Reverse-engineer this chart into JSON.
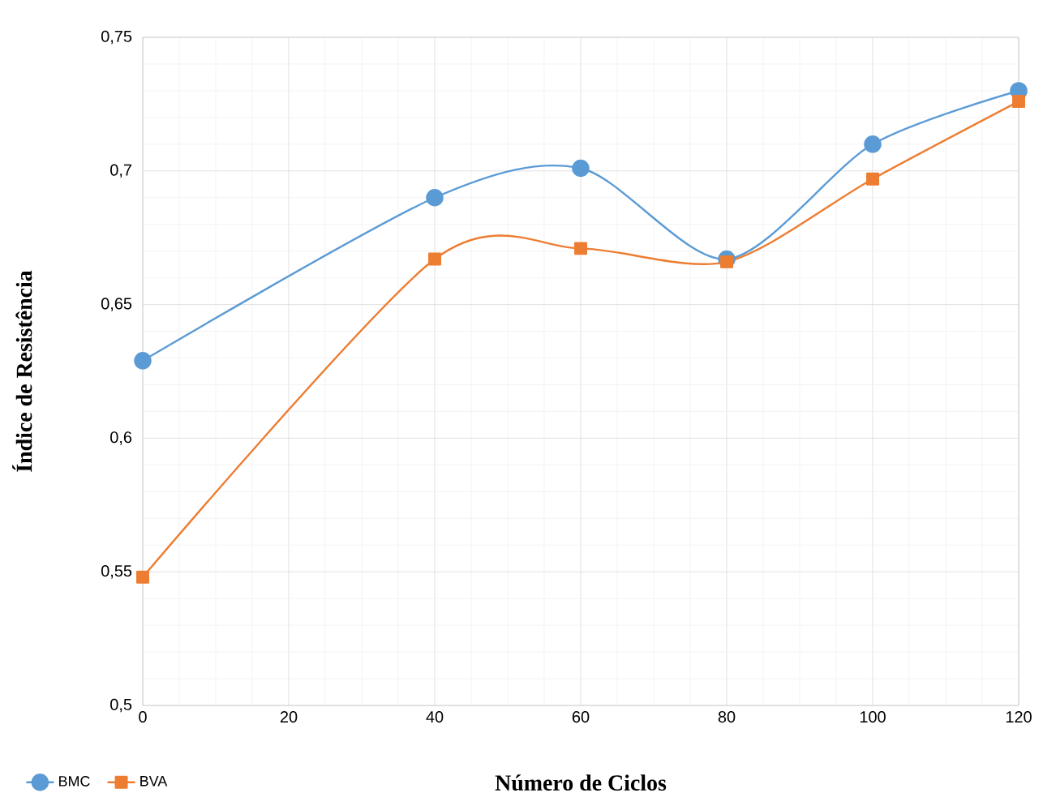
{
  "chart_data": {
    "type": "line",
    "xlabel": "Número de Ciclos",
    "ylabel": "Índice de Resistência",
    "x": [
      0,
      40,
      60,
      80,
      100,
      120
    ],
    "series": [
      {
        "name": "BMC",
        "color": "#5b9bd5",
        "marker": "circle",
        "values": [
          0.629,
          0.69,
          0.701,
          0.667,
          0.71,
          0.73
        ]
      },
      {
        "name": "BVA",
        "color": "#ed7d31",
        "marker": "square",
        "values": [
          0.548,
          0.667,
          0.671,
          0.666,
          0.697,
          0.726
        ]
      }
    ],
    "xlim": [
      0,
      120
    ],
    "xticks": [
      0,
      20,
      40,
      60,
      80,
      100,
      120
    ],
    "ylim": [
      0.5,
      0.75
    ],
    "yticks": [
      {
        "value": 0.5,
        "label": "0,5"
      },
      {
        "value": 0.55,
        "label": "0,55"
      },
      {
        "value": 0.6,
        "label": "0,6"
      },
      {
        "value": 0.65,
        "label": "0,65"
      },
      {
        "value": 0.7,
        "label": "0,7"
      },
      {
        "value": 0.75,
        "label": "0,75"
      }
    ],
    "grid": true,
    "legend": "bottom left"
  }
}
